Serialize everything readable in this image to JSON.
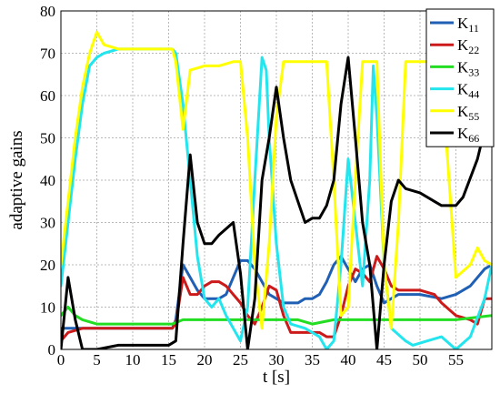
{
  "chart_data": {
    "type": "line",
    "title": "",
    "xlabel": "t [s]",
    "ylabel": "adaptive gains",
    "xlim": [
      0,
      60
    ],
    "ylim": [
      0,
      80
    ],
    "grid": true,
    "legend_position": "top-right",
    "x_ticks": [
      0,
      5,
      10,
      15,
      20,
      25,
      30,
      35,
      40,
      45,
      50,
      55
    ],
    "y_ticks": [
      0,
      10,
      20,
      30,
      40,
      50,
      60,
      70,
      80
    ],
    "series": [
      {
        "name": "K11",
        "label_main": "K",
        "label_sub": "11",
        "color": "#1f5fb4",
        "points": [
          [
            0,
            5
          ],
          [
            1,
            5
          ],
          [
            3,
            5
          ],
          [
            10,
            5
          ],
          [
            15.5,
            5
          ],
          [
            16,
            7
          ],
          [
            17,
            20
          ],
          [
            18,
            17
          ],
          [
            19,
            14
          ],
          [
            20,
            12
          ],
          [
            22,
            12
          ],
          [
            23,
            13
          ],
          [
            24,
            17
          ],
          [
            25,
            21
          ],
          [
            26,
            21
          ],
          [
            27,
            19
          ],
          [
            28,
            16
          ],
          [
            29,
            13
          ],
          [
            30,
            12
          ],
          [
            31,
            11
          ],
          [
            32,
            11
          ],
          [
            33,
            11
          ],
          [
            34,
            12
          ],
          [
            35,
            12
          ],
          [
            36,
            13
          ],
          [
            37,
            16
          ],
          [
            38,
            20
          ],
          [
            39,
            22
          ],
          [
            40,
            19
          ],
          [
            41,
            16
          ],
          [
            42,
            19
          ],
          [
            43,
            20
          ],
          [
            44,
            15
          ],
          [
            45,
            11
          ],
          [
            46,
            12
          ],
          [
            47,
            13
          ],
          [
            50,
            13
          ],
          [
            53,
            12
          ],
          [
            55,
            13
          ],
          [
            57,
            15
          ],
          [
            59,
            19
          ],
          [
            60,
            20
          ]
        ]
      },
      {
        "name": "K22",
        "label_main": "K",
        "label_sub": "22",
        "color": "#cc1a1a",
        "points": [
          [
            0,
            2
          ],
          [
            1,
            4
          ],
          [
            3,
            5
          ],
          [
            10,
            5
          ],
          [
            15.5,
            5
          ],
          [
            16,
            6
          ],
          [
            17,
            17
          ],
          [
            18,
            13
          ],
          [
            19,
            13
          ],
          [
            20,
            15
          ],
          [
            21,
            16
          ],
          [
            22,
            16
          ],
          [
            23,
            15
          ],
          [
            24,
            13
          ],
          [
            25,
            11
          ],
          [
            26,
            8
          ],
          [
            27,
            6
          ],
          [
            28,
            10
          ],
          [
            29,
            15
          ],
          [
            30,
            14
          ],
          [
            31,
            8
          ],
          [
            32,
            4
          ],
          [
            34,
            4
          ],
          [
            36,
            4
          ],
          [
            37,
            3
          ],
          [
            38,
            3
          ],
          [
            39,
            8
          ],
          [
            40,
            15
          ],
          [
            41,
            19
          ],
          [
            42,
            18
          ],
          [
            43,
            16
          ],
          [
            44,
            22
          ],
          [
            45,
            19
          ],
          [
            46,
            15
          ],
          [
            47,
            14
          ],
          [
            50,
            14
          ],
          [
            52,
            13
          ],
          [
            53,
            11
          ],
          [
            55,
            8
          ],
          [
            57,
            7
          ],
          [
            58,
            6
          ],
          [
            59,
            12
          ],
          [
            60,
            12
          ]
        ]
      },
      {
        "name": "K33",
        "label_main": "K",
        "label_sub": "33",
        "color": "#22dd22",
        "points": [
          [
            0,
            8
          ],
          [
            1,
            10
          ],
          [
            2,
            8
          ],
          [
            3,
            7
          ],
          [
            5,
            6
          ],
          [
            10,
            6
          ],
          [
            15.5,
            6
          ],
          [
            17,
            7
          ],
          [
            20,
            7
          ],
          [
            25,
            7
          ],
          [
            30,
            7
          ],
          [
            33,
            7
          ],
          [
            35,
            6
          ],
          [
            38,
            7
          ],
          [
            40,
            7
          ],
          [
            45,
            7
          ],
          [
            50,
            7
          ],
          [
            55,
            7
          ],
          [
            60,
            8
          ]
        ]
      },
      {
        "name": "K44",
        "label_main": "K",
        "label_sub": "44",
        "color": "#22e5ee",
        "points": [
          [
            0,
            15
          ],
          [
            1,
            30
          ],
          [
            2,
            45
          ],
          [
            3,
            58
          ],
          [
            4,
            67
          ],
          [
            5,
            69
          ],
          [
            6,
            70
          ],
          [
            8,
            71
          ],
          [
            10,
            71
          ],
          [
            15.5,
            71
          ],
          [
            16,
            70
          ],
          [
            17,
            58
          ],
          [
            18,
            40
          ],
          [
            19,
            22
          ],
          [
            20,
            12
          ],
          [
            21,
            10
          ],
          [
            22,
            12
          ],
          [
            23,
            8
          ],
          [
            24,
            5
          ],
          [
            25,
            2
          ],
          [
            26,
            10
          ],
          [
            27,
            40
          ],
          [
            28,
            69
          ],
          [
            28.6,
            66
          ],
          [
            29,
            50
          ],
          [
            30,
            25
          ],
          [
            31,
            10
          ],
          [
            32,
            6
          ],
          [
            34,
            5
          ],
          [
            35,
            4
          ],
          [
            36,
            3
          ],
          [
            37,
            0
          ],
          [
            38,
            2
          ],
          [
            39,
            20
          ],
          [
            40,
            45
          ],
          [
            41,
            30
          ],
          [
            42,
            15
          ],
          [
            43,
            40
          ],
          [
            43.5,
            67
          ],
          [
            44,
            55
          ],
          [
            45,
            20
          ],
          [
            46,
            5
          ],
          [
            48,
            2
          ],
          [
            49,
            1
          ],
          [
            51,
            2
          ],
          [
            53,
            3
          ],
          [
            55,
            0
          ],
          [
            57,
            3
          ],
          [
            59,
            12
          ],
          [
            60,
            20
          ]
        ]
      },
      {
        "name": "K55",
        "label_main": "K",
        "label_sub": "55",
        "color": "#ffff00",
        "points": [
          [
            0,
            20
          ],
          [
            1,
            35
          ],
          [
            2,
            50
          ],
          [
            3,
            62
          ],
          [
            4,
            70
          ],
          [
            5,
            75
          ],
          [
            6,
            72
          ],
          [
            8,
            71
          ],
          [
            10,
            71
          ],
          [
            15.5,
            71
          ],
          [
            16,
            68
          ],
          [
            17,
            52
          ],
          [
            18,
            66
          ],
          [
            20,
            67
          ],
          [
            22,
            67
          ],
          [
            24,
            68
          ],
          [
            25,
            68
          ],
          [
            26,
            50
          ],
          [
            27,
            20
          ],
          [
            28,
            5
          ],
          [
            29,
            25
          ],
          [
            30,
            55
          ],
          [
            31,
            68
          ],
          [
            33,
            68
          ],
          [
            36,
            68
          ],
          [
            37,
            68
          ],
          [
            38,
            40
          ],
          [
            39,
            8
          ],
          [
            40,
            10
          ],
          [
            41,
            40
          ],
          [
            42,
            68
          ],
          [
            44,
            68
          ],
          [
            45,
            20
          ],
          [
            46,
            5
          ],
          [
            47,
            30
          ],
          [
            48,
            68
          ],
          [
            50,
            68
          ],
          [
            52,
            68
          ],
          [
            53,
            65
          ],
          [
            55,
            17
          ],
          [
            57,
            20
          ],
          [
            58,
            24
          ],
          [
            59,
            21
          ],
          [
            60,
            20
          ]
        ]
      },
      {
        "name": "K66",
        "label_main": "K",
        "label_sub": "66",
        "color": "#000000",
        "points": [
          [
            0,
            0
          ],
          [
            1,
            17
          ],
          [
            2,
            7
          ],
          [
            3,
            0
          ],
          [
            5,
            0
          ],
          [
            8,
            1
          ],
          [
            12,
            1
          ],
          [
            15,
            1
          ],
          [
            16,
            2
          ],
          [
            17,
            25
          ],
          [
            18,
            46
          ],
          [
            19,
            30
          ],
          [
            20,
            25
          ],
          [
            21,
            25
          ],
          [
            22,
            27
          ],
          [
            24,
            30
          ],
          [
            25,
            18
          ],
          [
            26,
            0
          ],
          [
            27,
            12
          ],
          [
            28,
            40
          ],
          [
            29,
            50
          ],
          [
            30,
            62
          ],
          [
            31,
            50
          ],
          [
            32,
            40
          ],
          [
            33,
            35
          ],
          [
            34,
            30
          ],
          [
            35,
            31
          ],
          [
            36,
            31
          ],
          [
            37,
            34
          ],
          [
            38,
            40
          ],
          [
            39,
            58
          ],
          [
            40,
            69
          ],
          [
            41,
            50
          ],
          [
            42,
            30
          ],
          [
            43,
            20
          ],
          [
            44,
            0
          ],
          [
            45,
            20
          ],
          [
            46,
            35
          ],
          [
            47,
            40
          ],
          [
            48,
            38
          ],
          [
            50,
            37
          ],
          [
            52,
            35
          ],
          [
            53,
            34
          ],
          [
            55,
            34
          ],
          [
            56,
            36
          ],
          [
            58,
            45
          ],
          [
            59,
            52
          ],
          [
            60,
            53
          ]
        ]
      }
    ]
  }
}
